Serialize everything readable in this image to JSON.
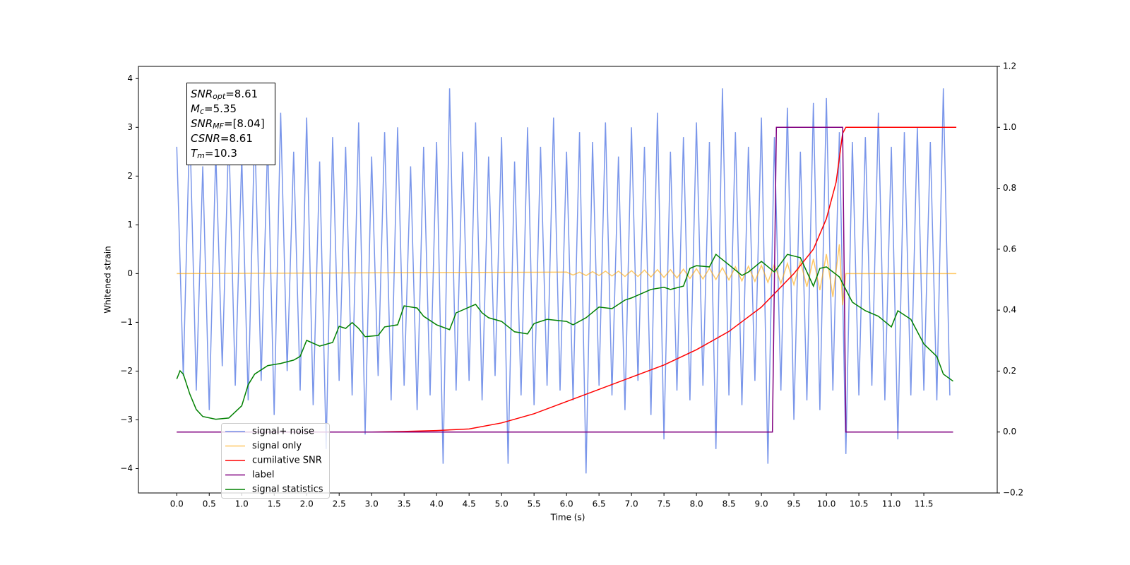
{
  "chart_data": {
    "type": "line",
    "xlabel": "Time (s)",
    "ylabel": "Whitened strain",
    "xlim": [
      -0.59,
      12.63
    ],
    "ylim": [
      -4.5,
      4.25
    ],
    "y2lim": [
      -0.2,
      1.2
    ],
    "xticks": [
      {
        "value": 0,
        "label": "0.0"
      },
      0.5,
      {
        "value": 1,
        "label": "1.0"
      },
      1.5,
      {
        "value": 2,
        "label": "2.0"
      },
      2.5,
      {
        "value": 3,
        "label": "3.0"
      },
      3.5,
      {
        "value": 4,
        "label": "4.0"
      },
      4.5,
      {
        "value": 5,
        "label": "5.0"
      },
      5.5,
      {
        "value": 6,
        "label": "6.0"
      },
      6.5,
      {
        "value": 7,
        "label": "7.0"
      },
      7.5,
      {
        "value": 8,
        "label": "8.0"
      },
      8.5,
      {
        "value": 9,
        "label": "9.0"
      },
      9.5,
      {
        "value": 10,
        "label": "10.0"
      },
      10.5,
      {
        "value": 11,
        "label": "11.0"
      },
      11.5
    ],
    "yticks": [
      {
        "value": -4,
        "label": "−4"
      },
      {
        "value": -3,
        "label": "−3"
      },
      {
        "value": -2,
        "label": "−2"
      },
      {
        "value": -1,
        "label": "−1"
      },
      0,
      1,
      2,
      3,
      4
    ],
    "y2ticks": [
      {
        "value": -0.2,
        "label": "−0.2"
      },
      {
        "value": 0,
        "label": "0.0"
      },
      0.2,
      0.4,
      0.6,
      0.8,
      {
        "value": 1,
        "label": "1.0"
      },
      1.2
    ],
    "annotation": [
      {
        "main": "SNR",
        "sub": "opt",
        "text": "=8.61"
      },
      {
        "main": "M",
        "sub": "c",
        "text": "=5.35"
      },
      {
        "main": "SNR",
        "sub": "MF",
        "text": "=[8.04]"
      },
      {
        "main": "CSNR",
        "text": "=8.61"
      },
      {
        "main": "T",
        "sub": "m",
        "text": "=10.3"
      }
    ],
    "series": [
      {
        "name": "signal+ noise",
        "color": "#4169e1",
        "alpha": 0.7,
        "x": [
          0,
          0.1,
          0.2,
          0.3,
          0.4,
          0.5,
          0.6,
          0.7,
          0.8,
          0.9,
          1,
          1.1,
          1.2,
          1.3,
          1.4,
          1.5,
          1.6,
          1.7,
          1.8,
          1.9,
          2,
          2.1,
          2.2,
          2.3,
          2.4,
          2.5,
          2.6,
          2.7,
          2.8,
          2.9,
          3,
          3.1,
          3.2,
          3.3,
          3.4,
          3.5,
          3.6,
          3.7,
          3.8,
          3.9,
          4,
          4.1,
          4.2,
          4.3,
          4.4,
          4.5,
          4.6,
          4.7,
          4.8,
          4.9,
          5,
          5.1,
          5.2,
          5.3,
          5.4,
          5.5,
          5.6,
          5.7,
          5.8,
          5.9,
          6,
          6.1,
          6.2,
          6.3,
          6.4,
          6.5,
          6.6,
          6.7,
          6.8,
          6.9,
          7,
          7.1,
          7.2,
          7.3,
          7.4,
          7.5,
          7.6,
          7.7,
          7.8,
          7.9,
          8,
          8.1,
          8.2,
          8.3,
          8.4,
          8.5,
          8.6,
          8.7,
          8.8,
          8.9,
          9,
          9.1,
          9.2,
          9.3,
          9.4,
          9.5,
          9.6,
          9.7,
          9.8,
          9.9,
          10,
          10.1,
          10.2,
          10.3,
          10.4,
          10.5,
          10.6,
          10.7,
          10.8,
          10.9,
          11,
          11.1,
          11.2,
          11.3,
          11.4,
          11.5,
          11.6,
          11.7,
          11.8,
          11.9
        ],
        "values": [
          2.6,
          -2.1,
          3.1,
          -2.4,
          2.2,
          -2.8,
          2.5,
          -1.9,
          2.9,
          -2.3,
          2.4,
          -2.6,
          3.0,
          -2.2,
          2.7,
          -2.9,
          3.3,
          -2.0,
          2.5,
          -2.4,
          3.2,
          -2.7,
          2.3,
          -3.6,
          2.8,
          -2.2,
          2.6,
          -2.5,
          3.1,
          -3.3,
          2.4,
          -2.1,
          2.9,
          -2.6,
          3.0,
          -2.3,
          2.2,
          -2.8,
          2.6,
          -2.5,
          2.7,
          -3.9,
          3.8,
          -2.4,
          2.5,
          -2.2,
          3.1,
          -2.6,
          2.4,
          -2.1,
          2.8,
          -3.9,
          2.3,
          -2.5,
          3.0,
          -2.7,
          2.6,
          -2.3,
          3.2,
          -2.4,
          2.5,
          -2.6,
          2.9,
          -4.1,
          2.7,
          -2.3,
          3.1,
          -2.5,
          2.4,
          -2.8,
          3.0,
          -2.2,
          2.6,
          -2.9,
          3.3,
          -3.4,
          2.5,
          -2.4,
          2.8,
          -2.6,
          3.1,
          -2.3,
          2.7,
          -3.6,
          3.8,
          -2.5,
          2.9,
          -2.7,
          2.6,
          -2.2,
          3.2,
          -3.9,
          2.8,
          -2.4,
          3.4,
          -3.0,
          2.5,
          -2.6,
          3.5,
          -2.8,
          3.6,
          -2.4,
          2.9,
          -3.7,
          2.7,
          -2.5,
          2.8,
          -2.3,
          3.3,
          -2.6,
          2.6,
          -3.4,
          2.9,
          -2.5,
          3.0,
          -2.4,
          2.7,
          -2.6,
          3.8,
          -2.5
        ]
      },
      {
        "name": "signal only",
        "color": "#ffa500",
        "alpha": 0.6,
        "x": [
          0,
          6,
          6.1,
          6.2,
          6.3,
          6.4,
          6.5,
          6.6,
          6.7,
          6.8,
          6.9,
          7,
          7.1,
          7.2,
          7.3,
          7.4,
          7.5,
          7.6,
          7.7,
          7.8,
          7.9,
          8,
          8.1,
          8.2,
          8.3,
          8.4,
          8.5,
          8.6,
          8.7,
          8.8,
          8.9,
          9,
          9.1,
          9.2,
          9.3,
          9.4,
          9.5,
          9.6,
          9.7,
          9.8,
          9.9,
          10,
          10.1,
          10.2,
          10.25,
          10.3,
          12
        ],
        "values": [
          0,
          0.03,
          -0.03,
          0.03,
          -0.04,
          0.04,
          -0.04,
          0.05,
          -0.05,
          0.05,
          -0.06,
          0.06,
          -0.06,
          0.07,
          -0.07,
          0.08,
          -0.08,
          0.08,
          -0.09,
          0.09,
          -0.1,
          0.1,
          -0.11,
          0.11,
          -0.12,
          0.12,
          -0.13,
          0.14,
          -0.15,
          0.15,
          -0.16,
          0.17,
          -0.18,
          0.19,
          -0.2,
          0.21,
          -0.23,
          0.25,
          -0.27,
          0.3,
          -0.34,
          0.4,
          -0.48,
          0.6,
          -0.65,
          0,
          0
        ]
      },
      {
        "name": "cumilative SNR",
        "color": "#ff0000",
        "axis": "y2",
        "x": [
          0,
          3,
          3.5,
          4,
          4.5,
          5,
          5.5,
          6,
          6.5,
          7,
          7.5,
          8,
          8.5,
          9,
          9.5,
          9.8,
          10,
          10.15,
          10.25,
          10.3,
          12
        ],
        "values": [
          0,
          0,
          0.002,
          0.005,
          0.01,
          0.03,
          0.06,
          0.1,
          0.14,
          0.18,
          0.22,
          0.27,
          0.33,
          0.41,
          0.52,
          0.6,
          0.7,
          0.82,
          0.98,
          1,
          1
        ]
      },
      {
        "name": "label",
        "color": "#800080",
        "axis": "y2",
        "x": [
          0,
          9.17,
          9.23,
          10.25,
          10.3,
          11.95
        ],
        "values": [
          0,
          0,
          1,
          1,
          0,
          0
        ]
      },
      {
        "name": "signal statistics",
        "color": "#008000",
        "axis": "y2",
        "x": [
          0,
          0.05,
          0.1,
          0.2,
          0.3,
          0.4,
          0.6,
          0.8,
          1,
          1.1,
          1.2,
          1.4,
          1.6,
          1.8,
          1.9,
          2,
          2.2,
          2.4,
          2.5,
          2.6,
          2.7,
          2.8,
          2.9,
          3.1,
          3.2,
          3.4,
          3.5,
          3.7,
          3.8,
          4,
          4.2,
          4.3,
          4.6,
          4.7,
          4.8,
          5,
          5.2,
          5.4,
          5.5,
          5.7,
          6,
          6.1,
          6.3,
          6.5,
          6.7,
          6.9,
          7,
          7.3,
          7.5,
          7.6,
          7.8,
          7.9,
          8,
          8.2,
          8.3,
          8.5,
          8.7,
          8.8,
          9,
          9.2,
          9.4,
          9.6,
          9.8,
          9.9,
          10,
          10.2,
          10.4,
          10.6,
          10.8,
          11,
          11.1,
          11.3,
          11.5,
          11.7,
          11.8,
          11.95
        ],
        "values": [
          0.174,
          0.201,
          0.19,
          0.125,
          0.074,
          0.051,
          0.042,
          0.046,
          0.086,
          0.155,
          0.19,
          0.218,
          0.225,
          0.236,
          0.248,
          0.301,
          0.282,
          0.294,
          0.347,
          0.34,
          0.359,
          0.34,
          0.313,
          0.317,
          0.345,
          0.352,
          0.414,
          0.407,
          0.38,
          0.352,
          0.336,
          0.391,
          0.419,
          0.391,
          0.375,
          0.363,
          0.329,
          0.322,
          0.356,
          0.37,
          0.363,
          0.352,
          0.375,
          0.41,
          0.405,
          0.433,
          0.44,
          0.468,
          0.475,
          0.468,
          0.479,
          0.537,
          0.546,
          0.542,
          0.583,
          0.549,
          0.514,
          0.525,
          0.56,
          0.525,
          0.583,
          0.572,
          0.479,
          0.537,
          0.542,
          0.509,
          0.426,
          0.398,
          0.38,
          0.345,
          0.398,
          0.37,
          0.289,
          0.248,
          0.19,
          0.167
        ]
      }
    ]
  }
}
